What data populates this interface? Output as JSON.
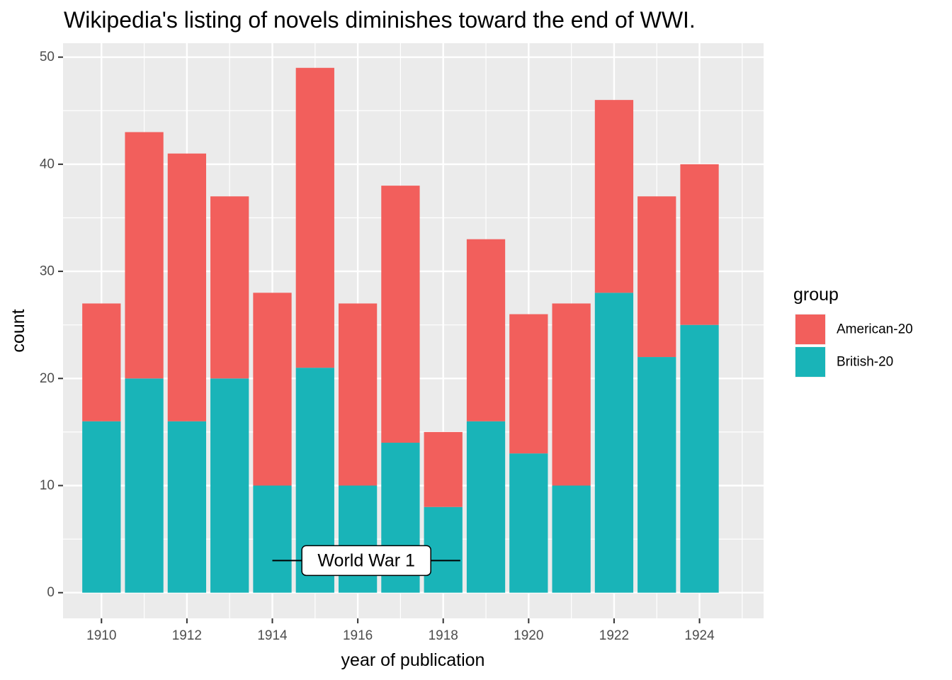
{
  "chart_data": {
    "type": "bar",
    "stacked": true,
    "title": "Wikipedia's listing of novels diminishes toward the end of WWI.",
    "xlabel": "year of publication",
    "ylabel": "count",
    "x": [
      1910,
      1911,
      1912,
      1913,
      1914,
      1915,
      1916,
      1917,
      1918,
      1919,
      1920,
      1921,
      1922,
      1923,
      1924
    ],
    "x_ticks": [
      1910,
      1912,
      1914,
      1916,
      1918,
      1920,
      1922,
      1924
    ],
    "y_ticks": [
      0,
      10,
      20,
      30,
      40,
      50
    ],
    "xlim": [
      1909.1,
      1925.5
    ],
    "ylim": [
      -2.4,
      51.3
    ],
    "grid": true,
    "legend": {
      "title": "group",
      "placement": "right"
    },
    "series": [
      {
        "name": "British-20",
        "color": "#19b4b8",
        "values": [
          16,
          20,
          16,
          20,
          10,
          21,
          10,
          14,
          8,
          16,
          13,
          10,
          28,
          22,
          25
        ]
      },
      {
        "name": "American-20",
        "color": "#f25f5c",
        "values": [
          11,
          23,
          25,
          17,
          18,
          28,
          17,
          24,
          7,
          17,
          13,
          17,
          18,
          15,
          15
        ]
      }
    ],
    "legend_order": [
      "American-20",
      "British-20"
    ],
    "annotation": {
      "label": "World War 1",
      "x_start": 1914,
      "x_end": 1918.4,
      "y": 3
    }
  }
}
